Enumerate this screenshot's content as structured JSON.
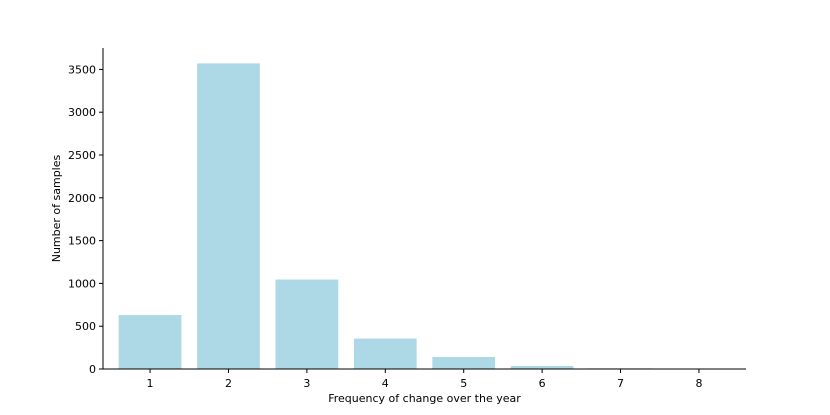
{
  "chart_data": {
    "type": "bar",
    "categories": [
      "1",
      "2",
      "3",
      "4",
      "5",
      "6",
      "7",
      "8"
    ],
    "values": [
      630,
      3570,
      1045,
      355,
      140,
      35,
      8,
      3
    ],
    "title": "",
    "xlabel": "Frequency of change over the year",
    "ylabel": "Number of samples",
    "ylim": [
      0,
      3750
    ],
    "yticks": [
      0,
      500,
      1000,
      1500,
      2000,
      2500,
      3000,
      3500
    ],
    "xticks": [
      "1",
      "2",
      "3",
      "4",
      "5",
      "6",
      "7",
      "8"
    ],
    "grid": false,
    "legend": "none",
    "bar_color": "#add8e6"
  }
}
